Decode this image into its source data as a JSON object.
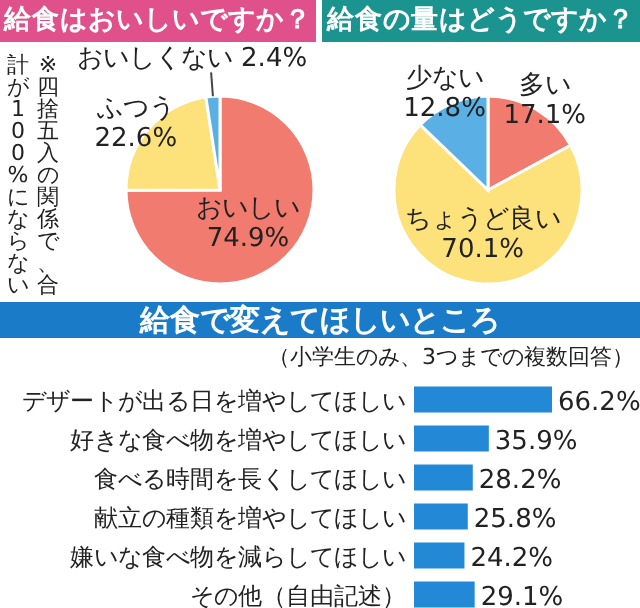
{
  "chart_data": [
    {
      "type": "pie",
      "title": "給食はおいしいですか？",
      "categories": [
        "おいしい",
        "ふつう",
        "おいしくない"
      ],
      "values": [
        74.9,
        22.6,
        2.4
      ],
      "colors": [
        "#f27b6f",
        "#fde17a",
        "#5ab0e4"
      ],
      "value_labels": [
        "74.9%",
        "22.6%",
        "2.4%"
      ],
      "annotations": [
        "※四捨五入の関係で、合計が100%にならない"
      ]
    },
    {
      "type": "pie",
      "title": "給食の量はどうですか？",
      "categories": [
        "多い",
        "ちょうど良い",
        "少ない"
      ],
      "values": [
        17.1,
        70.1,
        12.8
      ],
      "colors": [
        "#f27b6f",
        "#fde17a",
        "#5ab0e4"
      ],
      "value_labels": [
        "17.1%",
        "70.1%",
        "12.8%"
      ]
    },
    {
      "type": "bar",
      "orientation": "horizontal",
      "title": "給食で変えてほしいところ",
      "subtitle": "（小学生のみ、3つまでの複数回答）",
      "categories": [
        "デザートが出る日を増やしてほしい",
        "好きな食べ物を増やしてほしい",
        "食べる時間を長くしてほしい",
        "献立の種類を増やしてほしい",
        "嫌いな食べ物を減らしてほしい",
        "その他（自由記述）"
      ],
      "values": [
        66.2,
        35.9,
        28.2,
        25.8,
        24.2,
        29.1
      ],
      "color": "#2389d6",
      "value_labels": [
        "66.2%",
        "35.9%",
        "28.2%",
        "25.8%",
        "24.2%",
        "29.1%"
      ]
    }
  ]
}
